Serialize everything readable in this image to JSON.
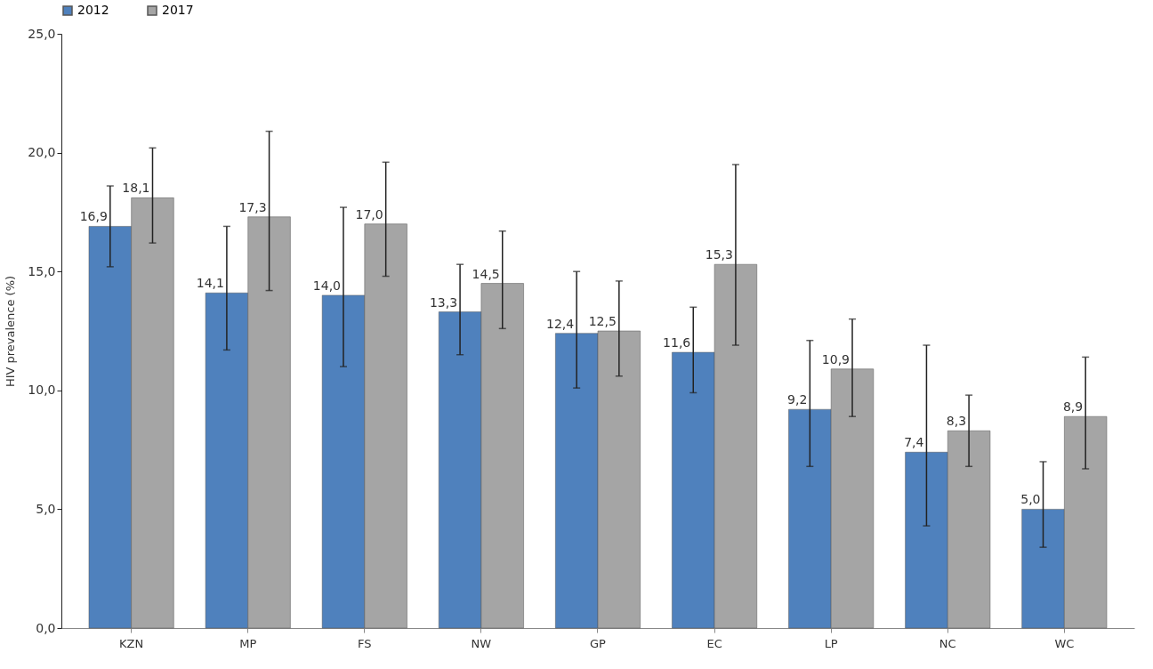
{
  "chart_data": {
    "type": "bar",
    "ylabel": "HIV prevalence (%)",
    "categories": [
      "KZN",
      "MP",
      "FS",
      "NW",
      "GP",
      "EC",
      "LP",
      "NC",
      "WC"
    ],
    "series": [
      {
        "name": "2012",
        "color": "#4f81bd",
        "values": [
          16.9,
          14.1,
          14.0,
          13.3,
          12.4,
          11.6,
          9.2,
          7.4,
          5.0
        ],
        "value_labels": [
          "16,9",
          "14,1",
          "14,0",
          "13,3",
          "12,4",
          "11,6",
          "9,2",
          "7,4",
          "5,0"
        ],
        "errors": [
          [
            15.2,
            18.6
          ],
          [
            11.7,
            16.9
          ],
          [
            11.0,
            17.7
          ],
          [
            11.5,
            15.3
          ],
          [
            10.1,
            15.0
          ],
          [
            9.9,
            13.5
          ],
          [
            6.8,
            12.1
          ],
          [
            4.3,
            11.9
          ],
          [
            3.4,
            7.0
          ]
        ]
      },
      {
        "name": "2017",
        "color": "#a5a5a5",
        "values": [
          18.1,
          17.3,
          17.0,
          14.5,
          12.5,
          15.3,
          10.9,
          8.3,
          8.9
        ],
        "value_labels": [
          "18,1",
          "17,3",
          "17,0",
          "14,5",
          "12,5",
          "15,3",
          "10,9",
          "8,3",
          "8,9"
        ],
        "errors": [
          [
            16.2,
            20.2
          ],
          [
            14.2,
            20.9
          ],
          [
            14.8,
            19.6
          ],
          [
            12.6,
            16.7
          ],
          [
            10.6,
            14.6
          ],
          [
            11.9,
            19.5
          ],
          [
            8.9,
            13.0
          ],
          [
            6.8,
            9.8
          ],
          [
            6.7,
            11.4
          ]
        ]
      }
    ],
    "ylim": [
      0,
      25
    ],
    "yticks": [
      {
        "value": 0,
        "label": "0,0"
      },
      {
        "value": 5,
        "label": "5,0"
      },
      {
        "value": 10,
        "label": "10,0"
      },
      {
        "value": 15,
        "label": "15,0"
      },
      {
        "value": 20,
        "label": "20,0"
      },
      {
        "value": 25,
        "label": "25,0"
      }
    ],
    "grid": false,
    "legend": "top"
  }
}
